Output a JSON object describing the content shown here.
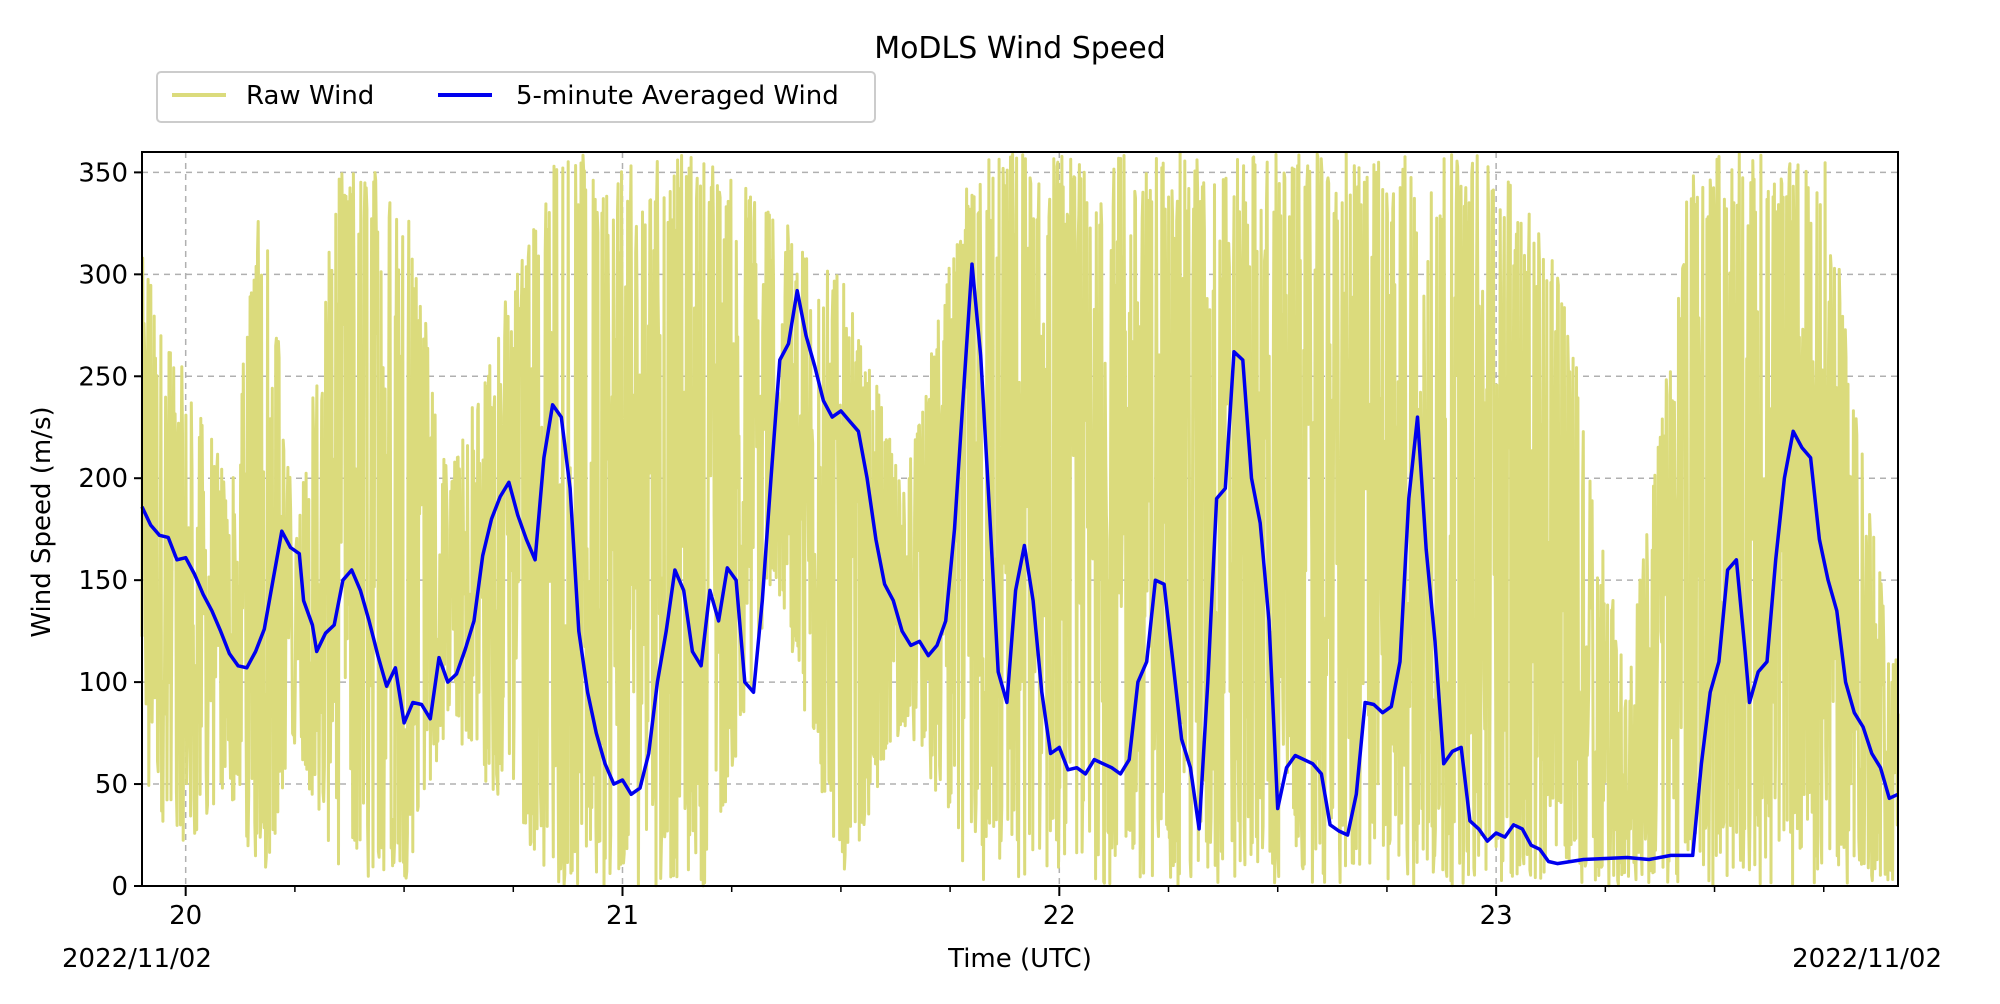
{
  "chart_data": {
    "type": "line",
    "title": "MoDLS Wind Speed",
    "xlabel": "Time (UTC)",
    "ylabel": "Wind Speed (m/s)",
    "x_unit": "day of month (UTC)",
    "xlim": [
      19.9,
      23.92
    ],
    "ylim": [
      0,
      360
    ],
    "x_ticks": [
      20,
      21,
      22,
      23
    ],
    "x_tick_labels": [
      "20",
      "21",
      "22",
      "23"
    ],
    "x_minor_step": 0.25,
    "y_ticks": [
      0,
      50,
      100,
      150,
      200,
      250,
      300,
      350
    ],
    "y_tick_labels": [
      "0",
      "50",
      "100",
      "150",
      "200",
      "250",
      "300",
      "350"
    ],
    "date_label_left": "2022/11/02",
    "date_label_right": "2022/11/02",
    "grid": true,
    "legend_position": "top-left, above plot",
    "colors": {
      "raw": "#dbdb7c",
      "avg": "#0000ee",
      "grid": "#b0b0b0"
    },
    "series": [
      {
        "name": "Raw Wind",
        "description_style": "light olive, very noisy; values spread across full 0-360 range",
        "values_envelope": [
          {
            "x": 19.9,
            "low": 40,
            "high": 310
          },
          {
            "x": 20.0,
            "low": 20,
            "high": 250
          },
          {
            "x": 20.1,
            "low": 40,
            "high": 200
          },
          {
            "x": 20.18,
            "low": 0,
            "high": 360
          },
          {
            "x": 20.25,
            "low": 70,
            "high": 170
          },
          {
            "x": 20.35,
            "low": 0,
            "high": 350
          },
          {
            "x": 20.5,
            "low": 0,
            "high": 360
          },
          {
            "x": 20.6,
            "low": 80,
            "high": 200
          },
          {
            "x": 20.75,
            "low": 30,
            "high": 300
          },
          {
            "x": 20.85,
            "low": 0,
            "high": 360
          },
          {
            "x": 21.0,
            "low": 0,
            "high": 360
          },
          {
            "x": 21.2,
            "low": 0,
            "high": 360
          },
          {
            "x": 21.35,
            "low": 150,
            "high": 330
          },
          {
            "x": 21.5,
            "low": 0,
            "high": 300
          },
          {
            "x": 21.65,
            "low": 80,
            "high": 200
          },
          {
            "x": 21.8,
            "low": 0,
            "high": 360
          },
          {
            "x": 22.0,
            "low": 0,
            "high": 360
          },
          {
            "x": 22.2,
            "low": 0,
            "high": 360
          },
          {
            "x": 22.4,
            "low": 0,
            "high": 360
          },
          {
            "x": 22.6,
            "low": 0,
            "high": 360
          },
          {
            "x": 22.8,
            "low": 0,
            "high": 360
          },
          {
            "x": 23.0,
            "low": 0,
            "high": 360
          },
          {
            "x": 23.15,
            "low": 0,
            "high": 300
          },
          {
            "x": 23.3,
            "low": 0,
            "high": 100
          },
          {
            "x": 23.45,
            "low": 0,
            "high": 360
          },
          {
            "x": 23.6,
            "low": 0,
            "high": 360
          },
          {
            "x": 23.75,
            "low": 0,
            "high": 360
          },
          {
            "x": 23.9,
            "low": 0,
            "high": 120
          }
        ]
      },
      {
        "name": "5-minute Averaged Wind",
        "points": [
          [
            19.9,
            186
          ],
          [
            19.92,
            177
          ],
          [
            19.94,
            172
          ],
          [
            19.96,
            171
          ],
          [
            19.98,
            160
          ],
          [
            20.0,
            161
          ],
          [
            20.02,
            153
          ],
          [
            20.04,
            143
          ],
          [
            20.06,
            135
          ],
          [
            20.08,
            125
          ],
          [
            20.1,
            114
          ],
          [
            20.12,
            108
          ],
          [
            20.14,
            107
          ],
          [
            20.16,
            115
          ],
          [
            20.18,
            126
          ],
          [
            20.2,
            150
          ],
          [
            20.22,
            174
          ],
          [
            20.24,
            166
          ],
          [
            20.26,
            163
          ],
          [
            20.27,
            140
          ],
          [
            20.29,
            128
          ],
          [
            20.3,
            115
          ],
          [
            20.32,
            124
          ],
          [
            20.34,
            128
          ],
          [
            20.36,
            150
          ],
          [
            20.38,
            155
          ],
          [
            20.4,
            145
          ],
          [
            20.42,
            130
          ],
          [
            20.44,
            113
          ],
          [
            20.46,
            98
          ],
          [
            20.48,
            107
          ],
          [
            20.5,
            80
          ],
          [
            20.52,
            90
          ],
          [
            20.54,
            89
          ],
          [
            20.56,
            82
          ],
          [
            20.58,
            112
          ],
          [
            20.6,
            100
          ],
          [
            20.62,
            104
          ],
          [
            20.64,
            116
          ],
          [
            20.66,
            130
          ],
          [
            20.68,
            162
          ],
          [
            20.7,
            180
          ],
          [
            20.72,
            191
          ],
          [
            20.74,
            198
          ],
          [
            20.76,
            182
          ],
          [
            20.78,
            170
          ],
          [
            20.8,
            160
          ],
          [
            20.82,
            210
          ],
          [
            20.84,
            236
          ],
          [
            20.86,
            230
          ],
          [
            20.88,
            195
          ],
          [
            20.9,
            125
          ],
          [
            20.92,
            95
          ],
          [
            20.94,
            75
          ],
          [
            20.96,
            60
          ],
          [
            20.98,
            50
          ],
          [
            21.0,
            52
          ],
          [
            21.02,
            45
          ],
          [
            21.04,
            48
          ],
          [
            21.06,
            65
          ],
          [
            21.08,
            100
          ],
          [
            21.1,
            125
          ],
          [
            21.12,
            155
          ],
          [
            21.14,
            145
          ],
          [
            21.16,
            115
          ],
          [
            21.18,
            108
          ],
          [
            21.2,
            145
          ],
          [
            21.22,
            130
          ],
          [
            21.24,
            156
          ],
          [
            21.26,
            150
          ],
          [
            21.28,
            100
          ],
          [
            21.3,
            95
          ],
          [
            21.32,
            140
          ],
          [
            21.34,
            200
          ],
          [
            21.36,
            258
          ],
          [
            21.38,
            266
          ],
          [
            21.4,
            292
          ],
          [
            21.42,
            270
          ],
          [
            21.44,
            255
          ],
          [
            21.46,
            238
          ],
          [
            21.48,
            230
          ],
          [
            21.5,
            233
          ],
          [
            21.52,
            228
          ],
          [
            21.54,
            223
          ],
          [
            21.56,
            200
          ],
          [
            21.58,
            170
          ],
          [
            21.6,
            148
          ],
          [
            21.62,
            140
          ],
          [
            21.64,
            125
          ],
          [
            21.66,
            118
          ],
          [
            21.68,
            120
          ],
          [
            21.7,
            113
          ],
          [
            21.72,
            118
          ],
          [
            21.74,
            130
          ],
          [
            21.76,
            175
          ],
          [
            21.78,
            240
          ],
          [
            21.8,
            305
          ],
          [
            21.82,
            260
          ],
          [
            21.84,
            185
          ],
          [
            21.86,
            105
          ],
          [
            21.88,
            90
          ],
          [
            21.9,
            145
          ],
          [
            21.92,
            167
          ],
          [
            21.94,
            140
          ],
          [
            21.96,
            95
          ],
          [
            21.98,
            65
          ],
          [
            22.0,
            68
          ],
          [
            22.02,
            57
          ],
          [
            22.04,
            58
          ],
          [
            22.06,
            55
          ],
          [
            22.08,
            62
          ],
          [
            22.1,
            60
          ],
          [
            22.12,
            58
          ],
          [
            22.14,
            55
          ],
          [
            22.16,
            62
          ],
          [
            22.18,
            100
          ],
          [
            22.2,
            110
          ],
          [
            22.22,
            150
          ],
          [
            22.24,
            148
          ],
          [
            22.26,
            110
          ],
          [
            22.28,
            72
          ],
          [
            22.3,
            58
          ],
          [
            22.32,
            28
          ],
          [
            22.34,
            100
          ],
          [
            22.36,
            190
          ],
          [
            22.38,
            195
          ],
          [
            22.4,
            262
          ],
          [
            22.42,
            258
          ],
          [
            22.44,
            200
          ],
          [
            22.46,
            178
          ],
          [
            22.48,
            130
          ],
          [
            22.5,
            38
          ],
          [
            22.52,
            58
          ],
          [
            22.54,
            64
          ],
          [
            22.56,
            62
          ],
          [
            22.58,
            60
          ],
          [
            22.6,
            55
          ],
          [
            22.62,
            30
          ],
          [
            22.64,
            27
          ],
          [
            22.66,
            25
          ],
          [
            22.68,
            45
          ],
          [
            22.7,
            90
          ],
          [
            22.72,
            89
          ],
          [
            22.74,
            85
          ],
          [
            22.76,
            88
          ],
          [
            22.78,
            110
          ],
          [
            22.8,
            190
          ],
          [
            22.82,
            230
          ],
          [
            22.84,
            165
          ],
          [
            22.86,
            120
          ],
          [
            22.88,
            60
          ],
          [
            22.9,
            66
          ],
          [
            22.92,
            68
          ],
          [
            22.94,
            32
          ],
          [
            22.96,
            28
          ],
          [
            22.98,
            22
          ],
          [
            23.0,
            26
          ],
          [
            23.02,
            24
          ],
          [
            23.04,
            30
          ],
          [
            23.06,
            28
          ],
          [
            23.08,
            20
          ],
          [
            23.1,
            18
          ],
          [
            23.12,
            12
          ],
          [
            23.14,
            11
          ],
          [
            23.2,
            13
          ],
          [
            23.3,
            14
          ],
          [
            23.35,
            13
          ],
          [
            23.4,
            15
          ],
          [
            23.45,
            15
          ],
          [
            23.47,
            60
          ],
          [
            23.49,
            95
          ],
          [
            23.51,
            110
          ],
          [
            23.53,
            155
          ],
          [
            23.55,
            160
          ],
          [
            23.57,
            115
          ],
          [
            23.58,
            90
          ],
          [
            23.6,
            105
          ],
          [
            23.62,
            110
          ],
          [
            23.64,
            160
          ],
          [
            23.66,
            200
          ],
          [
            23.68,
            223
          ],
          [
            23.7,
            215
          ],
          [
            23.72,
            210
          ],
          [
            23.74,
            170
          ],
          [
            23.76,
            150
          ],
          [
            23.78,
            135
          ],
          [
            23.8,
            100
          ],
          [
            23.82,
            85
          ],
          [
            23.84,
            78
          ],
          [
            23.86,
            65
          ],
          [
            23.88,
            58
          ],
          [
            23.9,
            43
          ],
          [
            23.92,
            45
          ]
        ]
      }
    ]
  }
}
